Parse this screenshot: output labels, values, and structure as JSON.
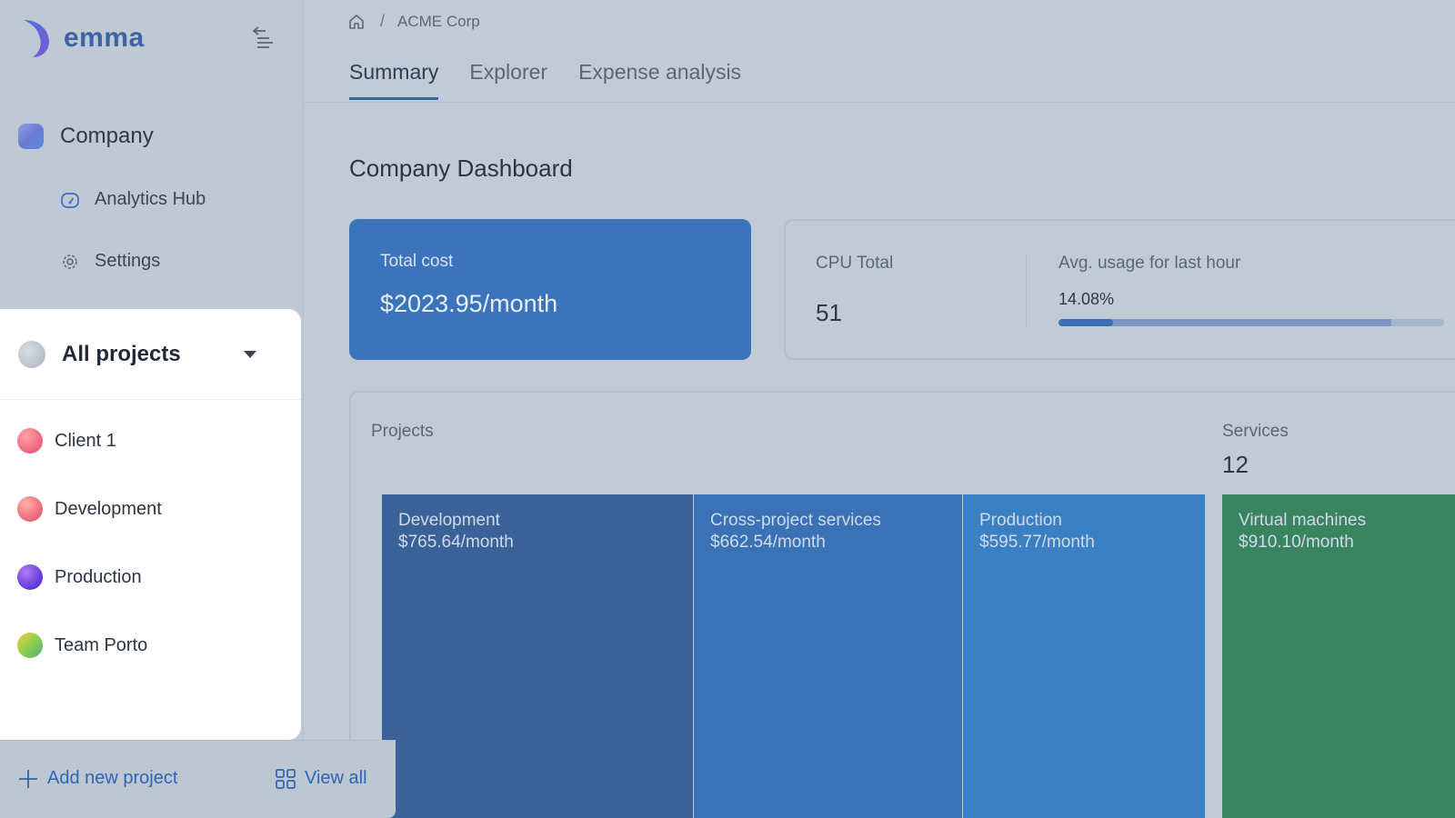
{
  "app": {
    "name": "emma",
    "accent": "#3b74bb"
  },
  "sidebar": {
    "company_label": "Company",
    "items": [
      {
        "label": "Analytics Hub",
        "icon": "gauge-icon"
      },
      {
        "label": "Settings",
        "icon": "gear-icon"
      }
    ],
    "projects_dropdown": {
      "selected": "All projects",
      "items": [
        {
          "label": "Client 1",
          "color": "#f06d7f"
        },
        {
          "label": "Development",
          "color": "#ef6f7c"
        },
        {
          "label": "Production",
          "color": "#6b3fe0"
        },
        {
          "label": "Team Porto",
          "color": "#8fcf4e"
        }
      ],
      "add_label": "Add new project",
      "view_all_label": "View all"
    }
  },
  "breadcrumb": {
    "separator": "/",
    "current": "ACME Corp"
  },
  "tabs": [
    {
      "label": "Summary",
      "active": true
    },
    {
      "label": "Explorer",
      "active": false
    },
    {
      "label": "Expense analysis",
      "active": false
    }
  ],
  "dashboard": {
    "title": "Company Dashboard",
    "total_cost": {
      "label": "Total cost",
      "value": "$2023.95/month"
    },
    "cpu": {
      "label": "CPU Total",
      "value": "51",
      "avg_label": "Avg. usage for last hour",
      "avg_value": "14.08%",
      "avg_fraction": 0.1408
    },
    "projects_section_label": "Projects",
    "services": {
      "label": "Services",
      "count": "12"
    },
    "project_tiles": [
      {
        "name": "Development",
        "cost": "$765.64/month",
        "color": "#3a6298"
      },
      {
        "name": "Cross-project services",
        "cost": "$662.54/month",
        "color": "#3b72b6"
      },
      {
        "name": "Production",
        "cost": "$595.77/month",
        "color": "#3b80c3"
      }
    ],
    "service_tiles": [
      {
        "name": "Virtual machines",
        "cost": "$910.10/month",
        "color": "#3b8460"
      }
    ]
  }
}
